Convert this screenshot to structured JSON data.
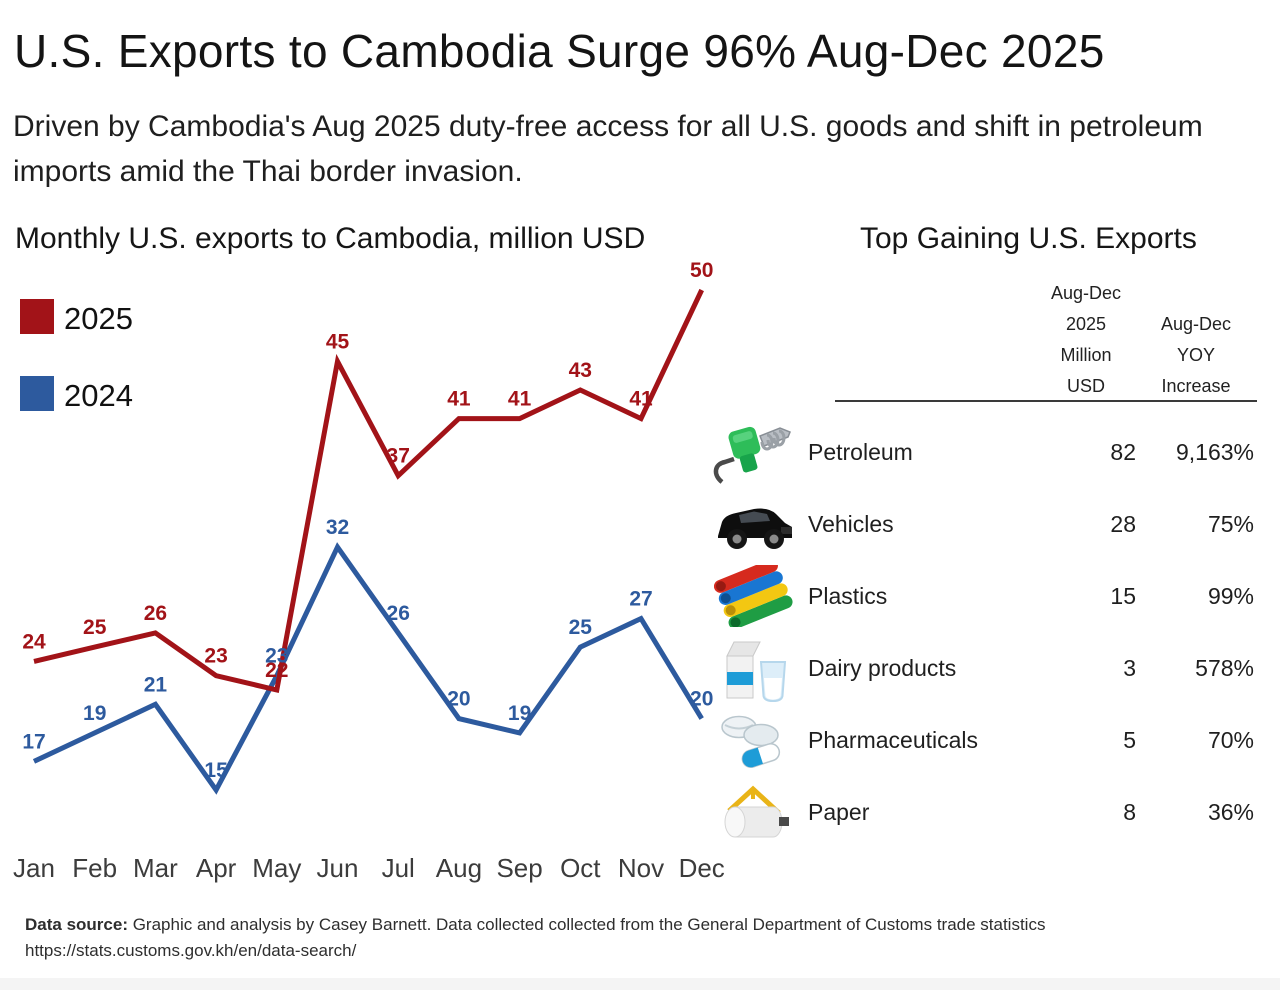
{
  "header": {
    "title": "U.S. Exports to Cambodia Surge 96% Aug-Dec 2025",
    "subtitle": "Driven by Cambodia's Aug 2025 duty-free access for all U.S. goods and shift in petroleum imports amid the Thai border invasion."
  },
  "chart": {
    "section_title": "Monthly U.S. exports to Cambodia, million USD"
  },
  "chart_data": {
    "type": "line",
    "title": "Monthly U.S. exports to Cambodia, million USD",
    "xlabel": "",
    "ylabel": "million USD",
    "categories": [
      "Jan",
      "Feb",
      "Mar",
      "Apr",
      "May",
      "Jun",
      "Jul",
      "Aug",
      "Sep",
      "Oct",
      "Nov",
      "Dec"
    ],
    "series": [
      {
        "name": "2024",
        "color": "#2D5A9E",
        "values": [
          17,
          19,
          21,
          15,
          23,
          32,
          26,
          20,
          19,
          25,
          27,
          20
        ]
      },
      {
        "name": "2025",
        "color": "#A21318",
        "values": [
          24,
          25,
          26,
          23,
          22,
          45,
          37,
          41,
          41,
          43,
          41,
          50
        ]
      }
    ],
    "ylim": [
      13,
      52
    ],
    "grid": false,
    "legend_position": "left",
    "data_labels": true
  },
  "table": {
    "title": "Top Gaining U.S. Exports",
    "col1_header": [
      "Aug-Dec",
      "2025",
      "Million",
      "USD"
    ],
    "col2_header": [
      "Aug-Dec",
      "YOY",
      "Increase"
    ],
    "rows": [
      {
        "icon": "fuel-pump",
        "product": "Petroleum",
        "value": "82",
        "increase": "9,163%"
      },
      {
        "icon": "vehicle",
        "product": "Vehicles",
        "value": "28",
        "increase": "75%"
      },
      {
        "icon": "plastics",
        "product": "Plastics",
        "value": "15",
        "increase": "99%"
      },
      {
        "icon": "dairy",
        "product": "Dairy products",
        "value": "3",
        "increase": "578%"
      },
      {
        "icon": "pills",
        "product": "Pharmaceuticals",
        "value": "5",
        "increase": "70%"
      },
      {
        "icon": "paper-roll",
        "product": "Paper",
        "value": "8",
        "increase": "36%"
      }
    ]
  },
  "footer": {
    "source_label": "Data source:",
    "source_text": " Graphic and analysis by Casey Barnett. Data collected collected from the General Department of Customs trade statistics",
    "source_url": "https://stats.customs.gov.kh/en/data-search/"
  }
}
